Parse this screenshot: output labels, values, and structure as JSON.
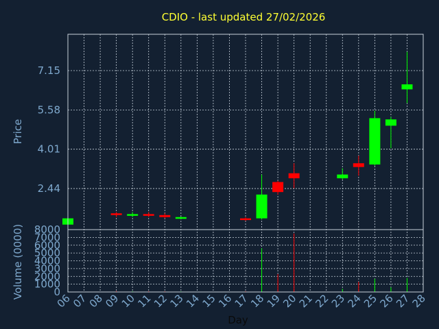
{
  "chart_data": {
    "type": "candlestick",
    "title": "CDIO - last updated 27/02/2026",
    "xlabel": "Day",
    "ylabel": "Price",
    "volume_label": "Volume (0000)",
    "grid": true,
    "x_ticks": [
      "06",
      "07",
      "08",
      "09",
      "10",
      "11",
      "12",
      "13",
      "14",
      "15",
      "16",
      "17",
      "18",
      "19",
      "20",
      "21",
      "22",
      "23",
      "24",
      "25",
      "26",
      "27",
      "28"
    ],
    "price_ticks": [
      2.44,
      4.01,
      5.58,
      7.15
    ],
    "price_tick_labels": [
      "2.44",
      "4.01",
      "5.58",
      "7.15"
    ],
    "price_ylim": [
      0.8,
      8.6
    ],
    "volume_ticks": [
      0,
      1000,
      2000,
      3000,
      4000,
      5000,
      6000,
      7000,
      8000
    ],
    "volume_tick_labels": [
      "0",
      "1000",
      "2000",
      "3000",
      "4000",
      "5000",
      "6000",
      "7000",
      "8000"
    ],
    "volume_ylim": [
      0,
      8000
    ],
    "up_color": "#00ff00",
    "down_color": "#ff0000",
    "candles": [
      {
        "day": 6,
        "open": 1.0,
        "high": 1.3,
        "low": 1.0,
        "close": 1.25,
        "volume": 150
      },
      {
        "day": 9,
        "open": 1.45,
        "high": 1.5,
        "low": 1.3,
        "close": 1.4,
        "volume": 120
      },
      {
        "day": 10,
        "open": 1.4,
        "high": 1.5,
        "low": 1.3,
        "close": 1.42,
        "volume": 100
      },
      {
        "day": 11,
        "open": 1.42,
        "high": 1.5,
        "low": 1.3,
        "close": 1.38,
        "volume": 100
      },
      {
        "day": 12,
        "open": 1.38,
        "high": 1.45,
        "low": 1.25,
        "close": 1.3,
        "volume": 90
      },
      {
        "day": 13,
        "open": 1.28,
        "high": 1.32,
        "low": 1.22,
        "close": 1.3,
        "volume": 80
      },
      {
        "day": 17,
        "open": 1.25,
        "high": 1.3,
        "low": 1.15,
        "close": 1.2,
        "volume": 100
      },
      {
        "day": 18,
        "open": 1.25,
        "high": 3.0,
        "low": 1.2,
        "close": 2.2,
        "volume": 5600
      },
      {
        "day": 19,
        "open": 2.7,
        "high": 2.75,
        "low": 2.2,
        "close": 2.3,
        "volume": 2300
      },
      {
        "day": 20,
        "open": 3.05,
        "high": 3.45,
        "low": 2.45,
        "close": 2.85,
        "volume": 7500
      },
      {
        "day": 23,
        "open": 2.85,
        "high": 3.25,
        "low": 2.8,
        "close": 3.0,
        "volume": 400
      },
      {
        "day": 24,
        "open": 3.45,
        "high": 3.75,
        "low": 2.95,
        "close": 3.3,
        "volume": 1300
      },
      {
        "day": 25,
        "open": 3.4,
        "high": 5.55,
        "low": 3.35,
        "close": 5.25,
        "volume": 1700
      },
      {
        "day": 26,
        "open": 4.95,
        "high": 5.3,
        "low": 4.05,
        "close": 5.2,
        "volume": 600
      },
      {
        "day": 27,
        "open": 6.4,
        "high": 7.9,
        "low": 5.85,
        "close": 6.6,
        "volume": 1800
      }
    ]
  }
}
